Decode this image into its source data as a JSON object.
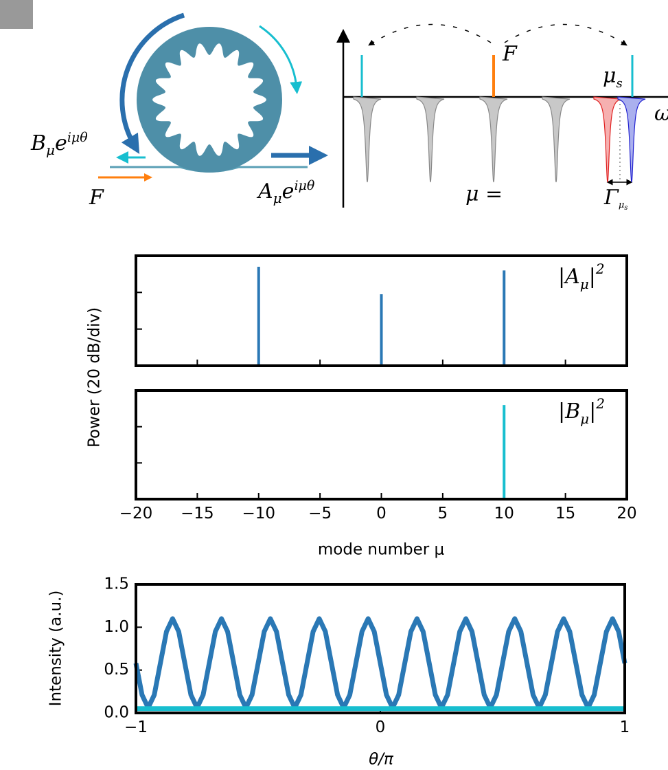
{
  "diagram": {
    "B_label": {
      "base": "B",
      "sub": "μ",
      "exp_base": "e",
      "sup": "iμθ"
    },
    "F_input": "F",
    "A_label": {
      "base": "A",
      "sub": "μ",
      "exp_base": "e",
      "sup": "iμθ"
    },
    "F_pump": "F",
    "mu_s": {
      "base": "μ",
      "sub": "s"
    },
    "omega": "ω",
    "mu_eq": "μ =",
    "gamma": {
      "base": "Γ",
      "sub": "μ",
      "subsub": "s"
    }
  },
  "chart_data": [
    {
      "type": "stem",
      "annotation": {
        "left": "|A",
        "sub": "μ",
        "right": "|",
        "sup": "2"
      },
      "ylabel": "Power (20 dB/div)",
      "x": [
        -10,
        0,
        10
      ],
      "values": [
        54,
        39,
        52
      ],
      "color": "#2a78b5",
      "xlim": [
        -20,
        20
      ],
      "xticks": [
        -20,
        -15,
        -10,
        -5,
        0,
        5,
        10,
        15,
        20
      ],
      "xtick_labels": false,
      "ylim": [
        0,
        60
      ],
      "yticks": [
        20,
        40
      ],
      "ytick_labels": false
    },
    {
      "type": "stem",
      "annotation": {
        "left": "|B",
        "sub": "μ",
        "right": "|",
        "sup": "2"
      },
      "xlabel": "mode number μ",
      "x": [
        10
      ],
      "values": [
        52
      ],
      "color": "#17becf",
      "xlim": [
        -20,
        20
      ],
      "xticks": [
        {
          "value": -20,
          "label": "−20"
        },
        {
          "value": -15,
          "label": "−15"
        },
        {
          "value": -10,
          "label": "−10"
        },
        {
          "value": -5,
          "label": "−5"
        },
        0,
        5,
        10,
        15,
        20
      ],
      "xtick_labels": true,
      "ylim": [
        0,
        60
      ],
      "yticks": [
        20,
        40
      ],
      "ytick_labels": false
    },
    {
      "type": "line",
      "ylabel": "Intensity (a.u.)",
      "xlabel": "θ/π",
      "xlim": [
        -1,
        1
      ],
      "xticks": [
        {
          "value": -1,
          "label": "−1"
        },
        0,
        1
      ],
      "xtick_labels": true,
      "ylim": [
        0,
        1.5
      ],
      "yticks": [
        {
          "value": 0,
          "label": "0.0"
        },
        {
          "value": 0.5,
          "label": "0.5"
        },
        {
          "value": 1,
          "label": "1.0"
        },
        {
          "value": 1.5,
          "label": "1.5"
        }
      ],
      "ytick_labels": true,
      "series": [
        {
          "color": "#2a78b5",
          "x": [
            -1,
            -0.975,
            -0.95,
            -0.925,
            -0.9,
            -0.875,
            -0.85,
            -0.825,
            -0.8,
            -0.775,
            -0.75,
            -0.725,
            -0.7,
            -0.675,
            -0.65,
            -0.625,
            -0.6,
            -0.575,
            -0.55,
            -0.525,
            -0.5,
            -0.475,
            -0.45,
            -0.425,
            -0.4,
            -0.375,
            -0.35,
            -0.325,
            -0.3,
            -0.275,
            -0.25,
            -0.225,
            -0.2,
            -0.175,
            -0.15,
            -0.125,
            -0.1,
            -0.075,
            -0.05,
            -0.025,
            0,
            0.025,
            0.05,
            0.075,
            0.1,
            0.125,
            0.15,
            0.175,
            0.2,
            0.225,
            0.25,
            0.275,
            0.3,
            0.325,
            0.35,
            0.375,
            0.4,
            0.425,
            0.45,
            0.475,
            0.5,
            0.525,
            0.55,
            0.575,
            0.6,
            0.625,
            0.65,
            0.675,
            0.7,
            0.725,
            0.75,
            0.775,
            0.8,
            0.825,
            0.85,
            0.875,
            0.9,
            0.925,
            0.95,
            0.975,
            1
          ],
          "values": [
            0.58,
            0.21,
            0.06,
            0.21,
            0.58,
            0.95,
            1.1,
            0.95,
            0.58,
            0.21,
            0.06,
            0.21,
            0.58,
            0.95,
            1.1,
            0.95,
            0.58,
            0.21,
            0.06,
            0.21,
            0.58,
            0.95,
            1.1,
            0.95,
            0.58,
            0.21,
            0.06,
            0.21,
            0.58,
            0.95,
            1.1,
            0.95,
            0.58,
            0.21,
            0.06,
            0.21,
            0.58,
            0.95,
            1.1,
            0.95,
            0.58,
            0.21,
            0.06,
            0.21,
            0.58,
            0.95,
            1.1,
            0.95,
            0.58,
            0.21,
            0.06,
            0.21,
            0.58,
            0.95,
            1.1,
            0.95,
            0.58,
            0.21,
            0.06,
            0.21,
            0.58,
            0.95,
            1.1,
            0.95,
            0.58,
            0.21,
            0.06,
            0.21,
            0.58,
            0.95,
            1.1,
            0.95,
            0.58,
            0.21,
            0.06,
            0.21,
            0.58,
            0.95,
            1.1,
            0.95,
            0.58
          ]
        },
        {
          "color": "#17becf",
          "x": [
            -1,
            1
          ],
          "values": [
            0.05,
            0.05
          ]
        }
      ]
    }
  ]
}
